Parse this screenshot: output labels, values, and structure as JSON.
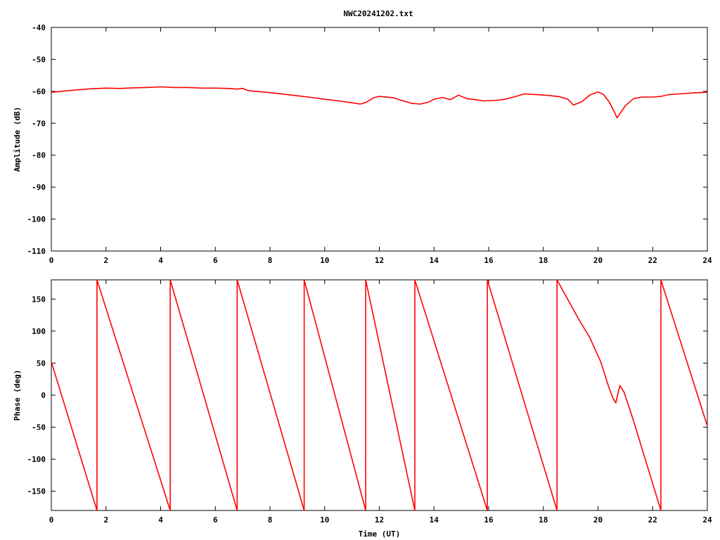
{
  "title": "NWC20241202.txt",
  "colors": {
    "series": "#ff0000",
    "axis": "#000000",
    "background": "#ffffff"
  },
  "chart_data": [
    {
      "type": "line",
      "ylabel": "Amplitude (dB)",
      "xlabel": "",
      "xlim": [
        0,
        24
      ],
      "ylim": [
        -110,
        -40
      ],
      "xticks": [
        "0",
        "2",
        "4",
        "6",
        "8",
        "10",
        "12",
        "14",
        "16",
        "18",
        "20",
        "22",
        "24"
      ],
      "yticks": [
        "-40",
        "-50",
        "-60",
        "-70",
        "-80",
        "-90",
        "-100",
        "-110"
      ],
      "series": [
        {
          "x": [
            0,
            0.5,
            1,
            1.5,
            2,
            2.5,
            3,
            3.5,
            4,
            4.5,
            5,
            5.5,
            6,
            6.5,
            6.8,
            7.0,
            7.2,
            7.5,
            8,
            8.5,
            9,
            9.5,
            10,
            10.5,
            11,
            11.3,
            11.5,
            11.8,
            12,
            12.5,
            12.8,
            13.2,
            13.5,
            13.8,
            14,
            14.3,
            14.6,
            14.9,
            15.2,
            15.5,
            15.8,
            16.2,
            16.6,
            17,
            17.3,
            17.7,
            18.2,
            18.6,
            18.9,
            19.1,
            19.4,
            19.7,
            20,
            20.2,
            20.4,
            20.6,
            20.7,
            20.8,
            21,
            21.3,
            21.6,
            22,
            22.3,
            22.6,
            23,
            23.5,
            24
          ],
          "y": [
            -60.3,
            -59.9,
            -59.5,
            -59.2,
            -59.0,
            -59.1,
            -58.9,
            -58.8,
            -58.6,
            -58.8,
            -58.8,
            -59.0,
            -59.0,
            -59.1,
            -59.3,
            -59.1,
            -59.8,
            -60.0,
            -60.4,
            -60.9,
            -61.4,
            -61.9,
            -62.5,
            -63.0,
            -63.6,
            -64.0,
            -63.5,
            -62.0,
            -61.6,
            -62.0,
            -62.8,
            -63.8,
            -64.0,
            -63.4,
            -62.5,
            -61.9,
            -62.6,
            -61.2,
            -62.3,
            -62.6,
            -63.0,
            -62.9,
            -62.5,
            -61.6,
            -60.8,
            -61.0,
            -61.3,
            -61.7,
            -62.5,
            -64.3,
            -63.3,
            -61.2,
            -60.2,
            -61.0,
            -63.2,
            -66.5,
            -68.3,
            -67.0,
            -64.5,
            -62.3,
            -61.8,
            -61.8,
            -61.6,
            -61.0,
            -60.8,
            -60.5,
            -60.3
          ]
        }
      ]
    },
    {
      "type": "line",
      "ylabel": "Phase (deg)",
      "xlabel": "Time (UT)",
      "xlim": [
        0,
        24
      ],
      "ylim": [
        -180,
        180
      ],
      "xticks": [
        "0",
        "2",
        "4",
        "6",
        "8",
        "10",
        "12",
        "14",
        "16",
        "18",
        "20",
        "22",
        "24"
      ],
      "yticks": [
        "150",
        "100",
        "50",
        "0",
        "-50",
        "-100",
        "-150"
      ],
      "series": [
        {
          "x": [
            0,
            1.67,
            1.67,
            4.35,
            4.35,
            6.8,
            6.8,
            9.25,
            9.25,
            11.5,
            11.5,
            13.3,
            13.3,
            15.95,
            15.95,
            18.5,
            18.5,
            19.3,
            19.7,
            20.1,
            20.4,
            20.55,
            20.65,
            20.8,
            20.95,
            21.3,
            22.3,
            22.3,
            24
          ],
          "y": [
            52,
            -180,
            180,
            -180,
            180,
            -180,
            180,
            -180,
            180,
            -180,
            180,
            -180,
            180,
            -180,
            180,
            -180,
            180,
            118,
            90,
            52,
            12,
            -5,
            -12,
            15,
            5,
            -40,
            -180,
            180,
            -48
          ]
        }
      ]
    }
  ]
}
